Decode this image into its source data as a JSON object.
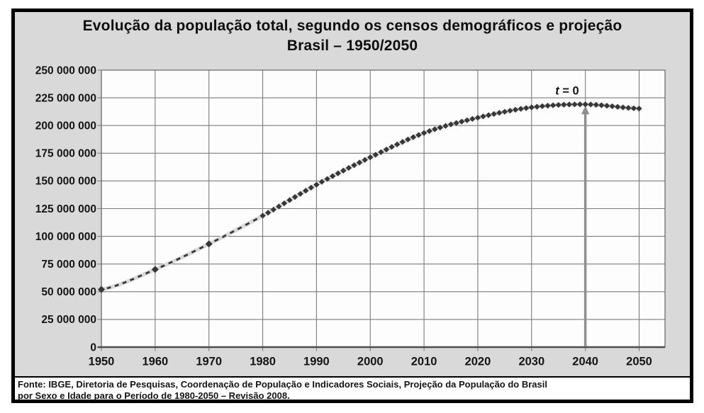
{
  "title": {
    "line1": "Evolução da população total, segundo os censos demográficos e projeção",
    "line2": "Brasil – 1950/2050"
  },
  "footer": {
    "line1": "Fonte: IBGE, Diretoria de Pesquisas, Coordenação de População e Indicadores Sociais, Projeção da População do Brasil",
    "line2": "por Sexo e Idade para o Período de 1980-2050 – Revisão 2008."
  },
  "colors": {
    "frame_border": "#000000",
    "panel_bg": "#d9d9d9",
    "plot_bg": "#fdfdfd",
    "gridline": "#7c7c7c",
    "plot_border": "#6f6f6f",
    "axis_line": "#4d4d4d",
    "series": "#373737",
    "series_glow": "#d9d9d9",
    "arrow": "#8f8f8f",
    "label_text": "#141414"
  },
  "chart_data": {
    "type": "line",
    "title": "Evolução da população total, segundo os censos demográficos e projeção Brasil – 1950/2050",
    "xlabel": "",
    "ylabel": "",
    "grid": true,
    "xlim": [
      1950,
      2054.8
    ],
    "ylim": [
      0,
      250000000
    ],
    "x_ticks": [
      1950,
      1960,
      1970,
      1980,
      1990,
      2000,
      2010,
      2020,
      2030,
      2040,
      2050
    ],
    "y_ticks": {
      "values": [
        0,
        25000000,
        50000000,
        75000000,
        100000000,
        125000000,
        150000000,
        175000000,
        200000000,
        225000000,
        250000000
      ],
      "labels": [
        "0",
        "25 000 000",
        "50 000 000",
        "75 000 000",
        "100 000 000",
        "125 000 000",
        "150 000 000",
        "175 000 000",
        "200 000 000",
        "225 000 000",
        "250 000 000"
      ]
    },
    "series": [
      {
        "marker": "diamond",
        "anchors": {
          "years": [
            1950,
            1960,
            1970,
            1980,
            1990,
            2000,
            2010,
            2020,
            2030,
            2040,
            2050
          ],
          "values": [
            52000000,
            70100000,
            93100000,
            118600000,
            146600000,
            171300000,
            193300000,
            207100000,
            216400000,
            219100000,
            215300000
          ]
        },
        "dashed_range": [
          1950,
          1980
        ],
        "yearly_markers_range": [
          1980,
          2050
        ]
      }
    ],
    "annotation": {
      "label_italic": "t",
      "label_rest": " = 0",
      "arrow_year": 2040
    },
    "source": "Fonte: IBGE, Diretoria de Pesquisas, Coordenação de População e Indicadores Sociais, Projeção da População do Brasil por Sexo e Idade para o Período de 1980-2050 – Revisão 2008."
  }
}
